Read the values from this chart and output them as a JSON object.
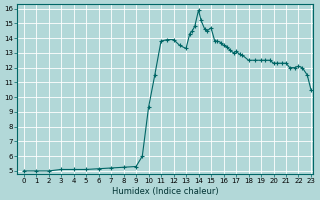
{
  "xlabel": "Humidex (Indice chaleur)",
  "ylabel": "",
  "background_color": "#b2d8d8",
  "grid_color": "#ffffff",
  "line_color": "#006666",
  "marker_color": "#006666",
  "xlim": [
    0,
    23
  ],
  "ylim": [
    5,
    16
  ],
  "yticks": [
    5,
    6,
    7,
    8,
    9,
    10,
    11,
    12,
    13,
    14,
    15,
    16
  ],
  "xticks": [
    0,
    1,
    2,
    3,
    4,
    5,
    6,
    7,
    8,
    9,
    10,
    11,
    12,
    13,
    14,
    15,
    16,
    17,
    18,
    19,
    20,
    21,
    22,
    23
  ],
  "x": [
    0,
    1,
    2,
    3,
    4,
    5,
    6,
    7,
    8,
    9,
    9.5,
    10,
    10.5,
    11,
    11.5,
    12,
    12.5,
    13,
    13.3,
    13.5,
    13.7,
    14,
    14.2,
    14.5,
    14.7,
    15,
    15.3,
    15.5,
    15.8,
    16,
    16.3,
    16.5,
    16.8,
    17,
    17.3,
    17.5,
    18,
    18.5,
    19,
    19.3,
    19.7,
    20,
    20.3,
    20.7,
    21,
    21.3,
    21.7,
    22,
    22.3,
    22.7,
    23
  ],
  "y": [
    5.0,
    5.0,
    5.0,
    5.1,
    5.1,
    5.1,
    5.15,
    5.2,
    5.25,
    5.3,
    6.0,
    9.3,
    11.5,
    13.8,
    13.9,
    13.9,
    13.5,
    13.3,
    14.3,
    14.5,
    14.8,
    15.9,
    15.2,
    14.6,
    14.5,
    14.7,
    13.8,
    13.8,
    13.7,
    13.5,
    13.4,
    13.2,
    13.0,
    13.1,
    12.9,
    12.85,
    12.5,
    12.5,
    12.5,
    12.5,
    12.5,
    12.3,
    12.3,
    12.3,
    12.3,
    12.0,
    12.0,
    12.1,
    12.0,
    11.5,
    10.5
  ]
}
